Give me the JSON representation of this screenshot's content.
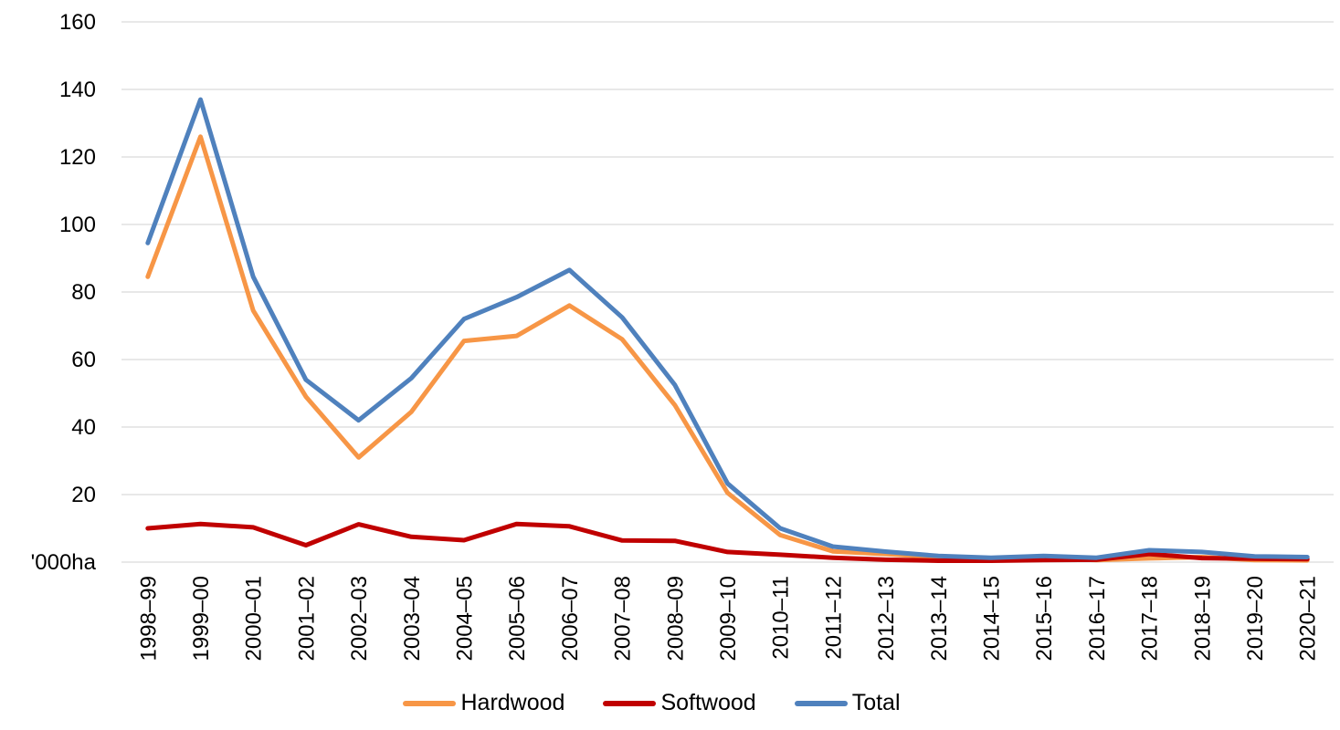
{
  "chart_data": {
    "type": "line",
    "title": "",
    "unit_label": "'000ha",
    "categories": [
      "1998–99",
      "1999–00",
      "2000–01",
      "2001–02",
      "2002–03",
      "2003–04",
      "2004–05",
      "2005–06",
      "2006–07",
      "2007–08",
      "2008–09",
      "2009–10",
      "2010–11",
      "2011–12",
      "2012–13",
      "2013–14",
      "2014–15",
      "2015–16",
      "2016–17",
      "2017–18",
      "2018–19",
      "2019–20",
      "2020–21"
    ],
    "series": [
      {
        "name": "Hardwood",
        "color": "#F79646",
        "values": [
          84.5,
          126,
          74.5,
          49,
          31,
          44.5,
          65.5,
          67,
          76,
          66,
          46.5,
          20.5,
          8,
          3.2,
          2.4,
          1.4,
          0.9,
          1.2,
          0.6,
          1.1,
          1.5,
          0.6,
          0.5
        ]
      },
      {
        "name": "Softwood",
        "color": "#C00000",
        "values": [
          10,
          11.3,
          10.3,
          5,
          11.2,
          7.5,
          6.5,
          11.3,
          10.6,
          6.4,
          6.3,
          3,
          2.2,
          1.3,
          0.7,
          0.4,
          0.4,
          0.6,
          0.7,
          2.4,
          1.2,
          1.0,
          0.9
        ]
      },
      {
        "name": "Total",
        "color": "#4F81BD",
        "values": [
          94.5,
          137,
          84.5,
          54,
          42,
          54.5,
          72,
          78.5,
          86.5,
          72.5,
          52.5,
          23.3,
          10,
          4.6,
          3.1,
          1.8,
          1.3,
          1.8,
          1.3,
          3.5,
          3.0,
          1.7,
          1.5
        ]
      }
    ],
    "y_axis": {
      "min": 0,
      "max": 160,
      "step": 20,
      "ticks": [
        {
          "value": 160,
          "label": "160"
        },
        {
          "value": 140,
          "label": "140"
        },
        {
          "value": 120,
          "label": "120"
        },
        {
          "value": 100,
          "label": "100"
        },
        {
          "value": 80,
          "label": "80"
        },
        {
          "value": 60,
          "label": "60"
        },
        {
          "value": 40,
          "label": "40"
        },
        {
          "value": 20,
          "label": "20"
        },
        {
          "value": 0,
          "label": "'000ha"
        }
      ]
    },
    "x_axis": {
      "label_rotation_deg": -90
    },
    "grid": true,
    "grid_color": "#D9D9D9",
    "text_color": "#000000",
    "legend": {
      "position": "bottom",
      "entries": [
        "Hardwood",
        "Softwood",
        "Total"
      ]
    }
  }
}
